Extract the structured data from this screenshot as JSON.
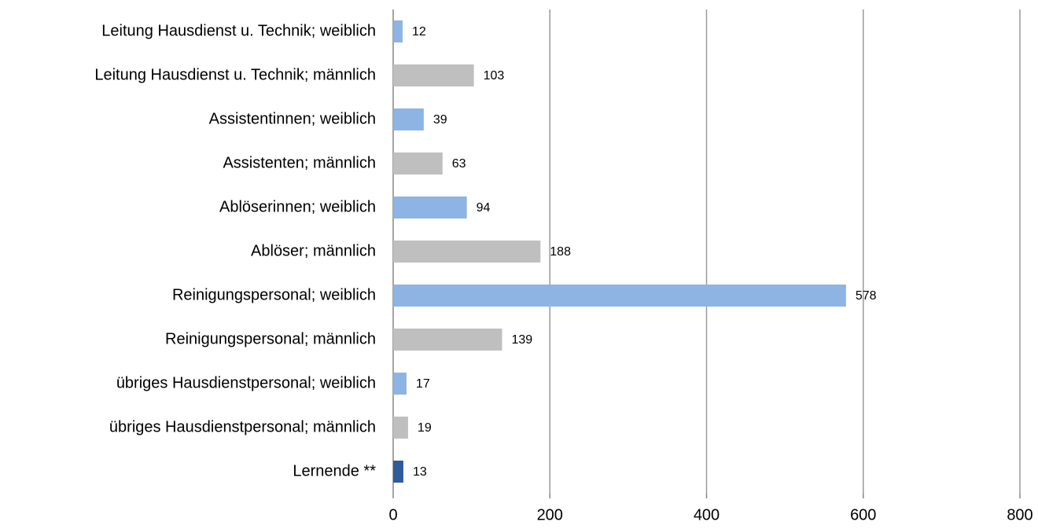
{
  "chart_data": {
    "type": "barh",
    "categories": [
      "Leitung Hausdienst u. Technik; weiblich",
      "Leitung Hausdienst u. Technik; männlich",
      "Assistentinnen; weiblich",
      "Assistenten; männlich",
      "Ablöserinnen; weiblich",
      "Ablöser; männlich",
      "Reinigungspersonal; weiblich",
      "Reinigungspersonal; männlich",
      "übriges Hausdienstpersonal; weiblich",
      "übriges Hausdienstpersonal; männlich",
      "Lernende **"
    ],
    "values": [
      12,
      103,
      39,
      63,
      94,
      188,
      578,
      139,
      17,
      19,
      13
    ],
    "colors": [
      "#8db4e2",
      "#bfbfbf",
      "#8db4e2",
      "#bfbfbf",
      "#8db4e2",
      "#bfbfbf",
      "#8db4e2",
      "#bfbfbf",
      "#8db4e2",
      "#bfbfbf",
      "#2e5b9a"
    ],
    "xlim": [
      0,
      800
    ],
    "xticks": [
      0,
      200,
      400,
      600,
      800
    ],
    "grid": true
  }
}
